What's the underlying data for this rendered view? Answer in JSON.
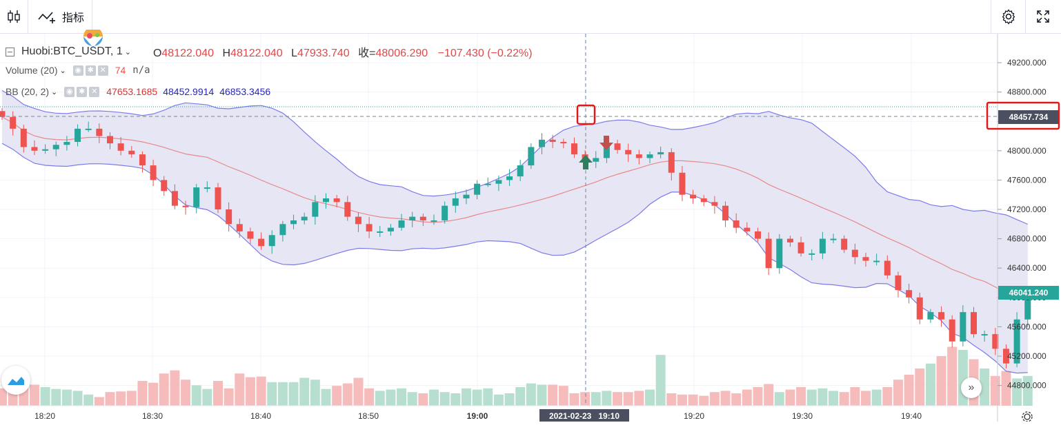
{
  "toolbar": {
    "indicators_label": "指标",
    "candle_icon": "candle-type-icon",
    "indicators_icon": "indicators-icon",
    "settings_icon": "gear-icon",
    "fullscreen_icon": "fullscreen-icon"
  },
  "legend": {
    "symbol": "Huobi:BTC_USDT, 1",
    "o_key": "O",
    "o_val": "48122.040",
    "h_key": "H",
    "h_val": "48122.040",
    "l_key": "L",
    "l_val": "47933.740",
    "c_key": "收=",
    "c_val": "48006.290",
    "change": "−107.430 (−0.22%)",
    "volume_name": "Volume (20)",
    "volume_val": "74",
    "volume_na": "n/a",
    "bb_name": "BB (20, 2)",
    "bb_mid": "47653.1685",
    "bb_upper": "48452.9914",
    "bb_lower": "46853.3456"
  },
  "price_axis": {
    "ticks": [
      "49200.000",
      "48800.000",
      "48400.000",
      "48000.000",
      "47600.000",
      "47200.000",
      "46800.000",
      "46400.000",
      "46000.000",
      "45600.000",
      "45200.000",
      "44800.000"
    ],
    "crosshair_label": "48457.734",
    "last_price_label": "46041.240"
  },
  "time_axis": {
    "ticks": [
      "18:20",
      "18:30",
      "18:40",
      "18:50",
      "19:00",
      "19:10",
      "19:20",
      "19:30",
      "19:40"
    ],
    "crosshair_label": "2021-02-23   19:10"
  },
  "colors": {
    "up": "#26a69a",
    "down": "#ef5350",
    "bb_band": "#7b7bea",
    "bb_fill": "#e6e6f4",
    "bb_mid": "#e8898a",
    "crosshair": "#758696"
  },
  "chart_data": {
    "type": "candlestick",
    "x_range": [
      "18:17",
      "19:47"
    ],
    "ylim": [
      44600,
      49500
    ],
    "candles_approx_close": [
      48460,
      48300,
      48050,
      48000,
      48020,
      48080,
      48120,
      48300,
      48300,
      48200,
      48100,
      48000,
      47950,
      47800,
      47600,
      47450,
      47250,
      47230,
      47500,
      47500,
      47200,
      47000,
      46900,
      46800,
      46700,
      46850,
      47000,
      47050,
      47100,
      47300,
      47350,
      47300,
      47100,
      47000,
      46900,
      46900,
      46950,
      47050,
      47100,
      47050,
      47050,
      47250,
      47350,
      47400,
      47550,
      47550,
      47600,
      47650,
      47800,
      48050,
      48150,
      48120,
      48100,
      47950,
      47850,
      47900,
      48100,
      48010,
      47950,
      47900,
      47950,
      47980,
      47700,
      47400,
      47350,
      47300,
      47250,
      47050,
      46950,
      46900,
      46800,
      46400,
      46800,
      46750,
      46600,
      46600,
      46800,
      46800,
      46650,
      46550,
      46500,
      46500,
      46300,
      46100,
      46000,
      45700,
      45800,
      45700,
      45400,
      45800,
      45500,
      45500,
      45300,
      45100,
      45700,
      46041
    ],
    "volume_approx": [
      28,
      45,
      40,
      34,
      30,
      27,
      26,
      24,
      18,
      14,
      22,
      23,
      24,
      40,
      37,
      52,
      57,
      42,
      33,
      27,
      40,
      28,
      52,
      46,
      47,
      38,
      38,
      38,
      45,
      42,
      27,
      32,
      36,
      45,
      28,
      24,
      26,
      28,
      22,
      20,
      26,
      22,
      20,
      28,
      26,
      28,
      18,
      20,
      30,
      36,
      34,
      34,
      32,
      20,
      22,
      22,
      24,
      22,
      22,
      24,
      26,
      82,
      20,
      18,
      18,
      16,
      22,
      24,
      20,
      26,
      30,
      35,
      22,
      26,
      30,
      26,
      28,
      24,
      22,
      30,
      24,
      26,
      30,
      42,
      50,
      60,
      68,
      80,
      95,
      90,
      75,
      60,
      48,
      56,
      44,
      48
    ]
  }
}
